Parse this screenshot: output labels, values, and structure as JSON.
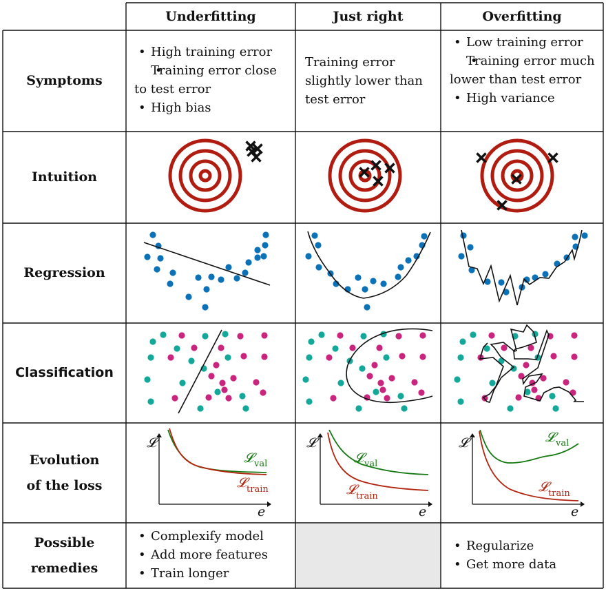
{
  "columns": [
    "Underfitting",
    "Just right",
    "Overfitting"
  ],
  "rows": {
    "symptoms": "Symptoms",
    "intuition": "Intuition",
    "regression": "Regression",
    "classification": "Classification",
    "loss_l1": "Evolution",
    "loss_l2": "of the loss",
    "remedies_l1": "Possible",
    "remedies_l2": "remedies"
  },
  "symptoms": {
    "underfitting": [
      "High training error",
      "Training error close to test error",
      "High bias"
    ],
    "just_right": "Training error slightly lower than test error",
    "overfitting": [
      "Low training error",
      "Training error much lower than test error",
      "High variance"
    ]
  },
  "remedies": {
    "underfitting": [
      "Complexify model",
      "Add more features",
      "Train longer"
    ],
    "overfitting": [
      "Regularize",
      "Get more data"
    ]
  },
  "loss_labels": {
    "y_axis": "𝓛",
    "x_axis": "e",
    "val": "𝓛",
    "val_sub": "val",
    "train": "𝓛",
    "train_sub": "train"
  },
  "colors": {
    "target_red": "#b11c10",
    "regression_blue": "#0b72b8",
    "class_teal": "#14a89a",
    "class_magenta": "#c9257f",
    "val_green": "#167a12",
    "train_red": "#b3240f",
    "grid_line": "#111111",
    "empty_cell": "#e8e8e8"
  }
}
